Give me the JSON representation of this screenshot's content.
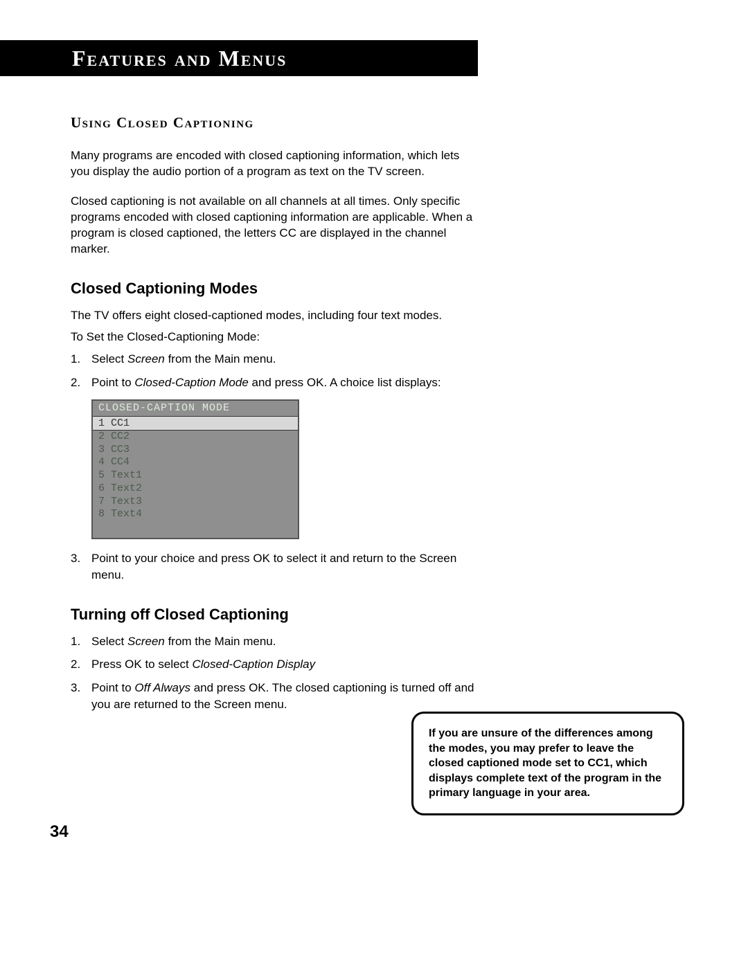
{
  "header": {
    "title": "Features and Menus"
  },
  "section1": {
    "title": "Using Closed Captioning",
    "p1": "Many programs are encoded with closed captioning information, which lets you display the audio portion of a program as text on the TV screen.",
    "p2": "Closed captioning is not available on all channels at all times. Only specific programs encoded with closed captioning information are applicable. When a program is closed captioned, the letters CC are displayed in the channel marker."
  },
  "section2": {
    "title": "Closed Captioning Modes",
    "intro": "The TV offers eight closed-captioned modes, including four text modes.",
    "toset": "To Set the Closed-Captioning Mode:",
    "step1_pre": "Select ",
    "step1_it": "Screen",
    "step1_post": " from the Main menu.",
    "step2_pre": "Point to ",
    "step2_it": "Closed-Caption Mode",
    "step2_post": " and press OK.  A choice list displays:",
    "step3": "Point to your choice and press OK to select it and return to the Screen menu."
  },
  "osd": {
    "title": "CLOSED-CAPTION MODE",
    "selected": "1 CC1",
    "rows": [
      "2 CC2",
      "3 CC3",
      "4 CC4",
      "5 Text1",
      "6 Text2",
      "7 Text3",
      "8 Text4"
    ]
  },
  "section3": {
    "title": "Turning off Closed Captioning",
    "step1_pre": "Select ",
    "step1_it": "Screen",
    "step1_post": " from the Main menu.",
    "step2_pre": "Press OK to select ",
    "step2_it": "Closed-Caption Display",
    "step3_pre": "Point to ",
    "step3_it": "Off Always",
    "step3_post": " and press OK. The closed captioning is turned off and you are returned to the Screen menu."
  },
  "note": "If you are unsure of the differences among the modes, you may prefer to leave the closed captioned mode set to CC1, which displays complete text of the program in the primary language in your area.",
  "pagenum": "34"
}
